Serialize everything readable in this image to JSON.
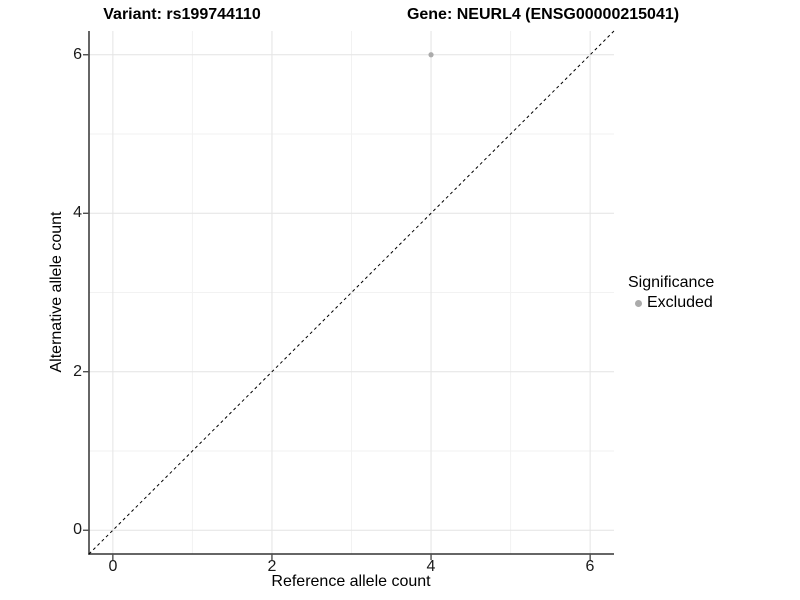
{
  "chart_data": {
    "type": "scatter",
    "titles": {
      "left": "Variant: rs199744110",
      "right": "Gene: NEURL4 (ENSG00000215041)"
    },
    "xlabel": "Reference allele count",
    "ylabel": "Alternative allele count",
    "xlim": [
      -0.3,
      6.3
    ],
    "ylim": [
      -0.3,
      6.3
    ],
    "x_ticks": [
      0,
      2,
      4,
      6
    ],
    "y_ticks": [
      0,
      2,
      4,
      6
    ],
    "x_minor": [
      1,
      3,
      5
    ],
    "y_minor": [
      1,
      3,
      5
    ],
    "grid": true,
    "points": [
      {
        "x": 4,
        "y": 6,
        "series": "Excluded"
      }
    ],
    "reference_line": {
      "type": "identity",
      "slope": 1,
      "intercept": 0,
      "style": "dashed",
      "color": "#000000"
    },
    "legend": {
      "title": "Significance",
      "position": "right",
      "items": [
        {
          "label": "Excluded",
          "color": "#ababab",
          "marker": "circle"
        }
      ]
    },
    "colors": {
      "point": "#ababab",
      "grid_major": "#e4e4e4",
      "grid_minor": "#f2f2f2",
      "axis": "#333333",
      "tick_label": "#1a1a1a",
      "panel_background": "#ffffff"
    }
  }
}
